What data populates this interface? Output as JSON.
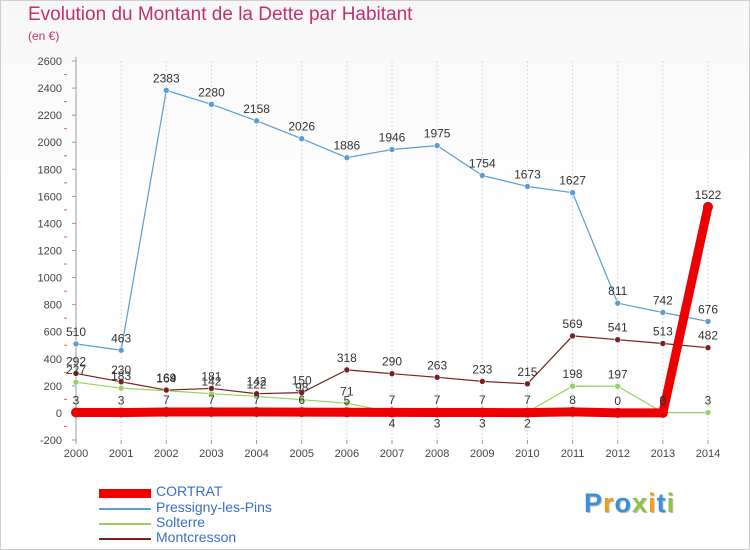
{
  "title": "Evolution du Montant de la Dette par Habitant",
  "subtitle": "(en €)",
  "logo": {
    "text": "Proxiti",
    "letters": [
      {
        "ch": "P",
        "color": "#3d8fd8"
      },
      {
        "ch": "r",
        "color": "#f39a1a"
      },
      {
        "ch": "o",
        "color": "#3d8fd8"
      },
      {
        "ch": "x",
        "color": "#8bc34a"
      },
      {
        "ch": "i",
        "color": "#f39a1a"
      },
      {
        "ch": "t",
        "color": "#3d8fd8"
      },
      {
        "ch": "i",
        "color": "#8bc34a"
      }
    ]
  },
  "chart_data": {
    "type": "line",
    "x": [
      2000,
      2001,
      2002,
      2003,
      2004,
      2005,
      2006,
      2007,
      2008,
      2009,
      2010,
      2011,
      2012,
      2013,
      2014
    ],
    "ylim": [
      -200,
      2600
    ],
    "yticks": [
      -200,
      0,
      200,
      400,
      600,
      800,
      1000,
      1200,
      1400,
      1600,
      1800,
      2000,
      2200,
      2400,
      2600
    ],
    "grid": "vertical",
    "legend_position": "bottom-left",
    "series": [
      {
        "name": "CORTRAT",
        "color": "#ee0000",
        "width": 9,
        "marker": 5,
        "values": [
          3,
          3,
          7,
          7,
          7,
          6,
          5,
          4,
          3,
          3,
          2,
          8,
          0,
          0,
          1522
        ],
        "labels": [
          "3",
          "3",
          "7",
          "7",
          "7",
          "6",
          "5",
          "4",
          "3",
          "3",
          "2",
          "8",
          "0",
          "0",
          "1522"
        ],
        "label_pos": [
          "above",
          "above",
          "above",
          "above",
          "above",
          "above",
          "above",
          "below",
          "below",
          "below",
          "below",
          "above",
          "above",
          "above",
          "above"
        ]
      },
      {
        "name": "Pressigny-les-Pins",
        "color": "#5d9bd3",
        "width": 1.2,
        "marker": 3,
        "values": [
          510,
          463,
          2383,
          2280,
          2158,
          2026,
          1886,
          1946,
          1975,
          1754,
          1673,
          1627,
          811,
          742,
          676
        ],
        "labels": [
          "510",
          "463",
          "2383",
          "2280",
          "2158",
          "2026",
          "1886",
          "1946",
          "1975",
          "1754",
          "1673",
          "1627",
          "811",
          "742",
          "676"
        ],
        "label_pos": [
          "above",
          "above",
          "above",
          "above",
          "above",
          "above",
          "above",
          "above",
          "above",
          "above",
          "above",
          "above",
          "above",
          "above",
          "above"
        ]
      },
      {
        "name": "Solterre",
        "color": "#93d35d",
        "width": 1.2,
        "marker": 3,
        "values": [
          227,
          183,
          164,
          142,
          122,
          98,
          71,
          7,
          7,
          7,
          7,
          198,
          197,
          3,
          3
        ],
        "labels": [
          "227",
          "183",
          "164",
          "142",
          "122",
          "98",
          "71",
          "7",
          "7",
          "7",
          "7",
          "198",
          "197",
          "3",
          "3"
        ],
        "label_pos": [
          "above",
          "above",
          "above",
          "above",
          "above",
          "above",
          "above",
          "above",
          "above",
          "above",
          "above",
          "above",
          "above",
          "above",
          "above"
        ]
      },
      {
        "name": "Montcresson",
        "color": "#7b1e1e",
        "width": 1.2,
        "marker": 3,
        "values": [
          292,
          230,
          169,
          181,
          142,
          150,
          318,
          290,
          263,
          233,
          215,
          569,
          541,
          513,
          482
        ],
        "labels": [
          "292",
          "230",
          "169",
          "181",
          "142",
          "150",
          "318",
          "290",
          "263",
          "233",
          "215",
          "569",
          "541",
          "513",
          "482"
        ],
        "label_pos": [
          "above",
          "above",
          "above",
          "above",
          "above",
          "above",
          "above",
          "above",
          "above",
          "above",
          "above",
          "above",
          "above",
          "above",
          "above"
        ]
      }
    ]
  }
}
